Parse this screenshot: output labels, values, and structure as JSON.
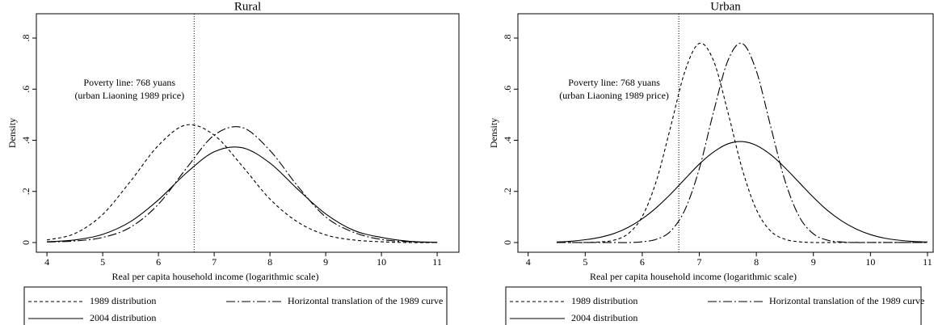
{
  "chart_data": [
    {
      "type": "line",
      "title": "Rural",
      "xlabel": "Real per capita household income (logarithmic scale)",
      "ylabel": "Density",
      "xlim": [
        3.81,
        11.39
      ],
      "ylim": [
        -0.038,
        0.895
      ],
      "xticks": [
        4,
        5,
        6,
        7,
        8,
        9,
        10,
        11
      ],
      "yticks": [
        0,
        {
          "value": 0.2,
          "label": ".2"
        },
        {
          "value": 0.4,
          "label": ".4"
        },
        {
          "value": 0.6,
          "label": ".6"
        },
        {
          "value": 0.8,
          "label": ".8"
        }
      ],
      "vline": 6.64,
      "annotation": [
        "Poverty line: 768 yuans",
        "(urban Liaoning 1989 price)"
      ],
      "x": [
        4,
        4.5,
        5,
        5.5,
        6,
        6.5,
        7,
        7.5,
        8,
        8.5,
        9,
        9.5,
        10,
        10.5,
        11
      ],
      "series": [
        {
          "name": "1989 distribution",
          "color": "#000000",
          "dash": "dashed",
          "values": [
            0.01,
            0.035,
            0.11,
            0.24,
            0.38,
            0.46,
            0.42,
            0.3,
            0.17,
            0.08,
            0.03,
            0.01,
            0.003,
            0,
            0
          ]
        },
        {
          "name": "Horizontal translation of the 1989 curve",
          "color": "#000000",
          "dash": "dashdot",
          "values": [
            0.002,
            0.006,
            0.02,
            0.06,
            0.15,
            0.29,
            0.42,
            0.45,
            0.36,
            0.22,
            0.1,
            0.04,
            0.012,
            0.003,
            0
          ]
        },
        {
          "name": "2004 distribution",
          "color": "#000000",
          "dash": "solid",
          "values": [
            0.003,
            0.01,
            0.032,
            0.082,
            0.167,
            0.272,
            0.355,
            0.371,
            0.311,
            0.208,
            0.112,
            0.048,
            0.02,
            0.005,
            0.001
          ]
        }
      ]
    },
    {
      "type": "line",
      "title": "Urban",
      "xlabel": "Real per capita household income (logarithmic scale)",
      "ylabel": "Density",
      "xlim": [
        3.82,
        11.1
      ],
      "ylim": [
        -0.038,
        0.895
      ],
      "xticks": [
        4,
        5,
        6,
        7,
        8,
        9,
        10,
        11
      ],
      "yticks": [
        0,
        {
          "value": 0.2,
          "label": ".2"
        },
        {
          "value": 0.4,
          "label": ".4"
        },
        {
          "value": 0.6,
          "label": ".6"
        },
        {
          "value": 0.8,
          "label": ".8"
        }
      ],
      "vline": 6.64,
      "annotation": [
        "Poverty line: 768 yuans",
        "(urban Liaoning 1989 price)"
      ],
      "x": [
        4.5,
        4.75,
        5,
        5.25,
        5.5,
        5.75,
        6,
        6.25,
        6.5,
        6.75,
        7,
        7.25,
        7.5,
        7.75,
        8,
        8.25,
        8.5,
        8.75,
        9,
        9.25,
        9.5,
        9.75,
        10,
        10.25,
        10.5,
        10.75,
        11
      ],
      "series": [
        {
          "name": "1989 distribution",
          "color": "#000000",
          "dash": "dashed",
          "values": [
            0,
            0,
            0,
            0.002,
            0.009,
            0.034,
            0.102,
            0.243,
            0.455,
            0.671,
            0.779,
            0.711,
            0.511,
            0.289,
            0.129,
            0.045,
            0.013,
            0.003,
            0,
            0,
            0,
            0,
            0,
            0,
            0,
            0,
            0
          ]
        },
        {
          "name": "Horizontal translation of the 1989 curve",
          "color": "#000000",
          "dash": "dashdot",
          "values": [
            0,
            0,
            0,
            0,
            0,
            0,
            0.003,
            0.013,
            0.045,
            0.129,
            0.289,
            0.511,
            0.711,
            0.779,
            0.671,
            0.455,
            0.243,
            0.102,
            0.034,
            0.009,
            0.002,
            0,
            0,
            0,
            0,
            0,
            0
          ]
        },
        {
          "name": "2004 distribution",
          "color": "#000000",
          "dash": "solid",
          "values": [
            0.002,
            0.005,
            0.011,
            0.02,
            0.035,
            0.059,
            0.093,
            0.137,
            0.19,
            0.249,
            0.307,
            0.354,
            0.386,
            0.395,
            0.38,
            0.344,
            0.293,
            0.235,
            0.177,
            0.125,
            0.084,
            0.053,
            0.031,
            0.017,
            0.009,
            0.004,
            0.002
          ]
        }
      ]
    }
  ]
}
